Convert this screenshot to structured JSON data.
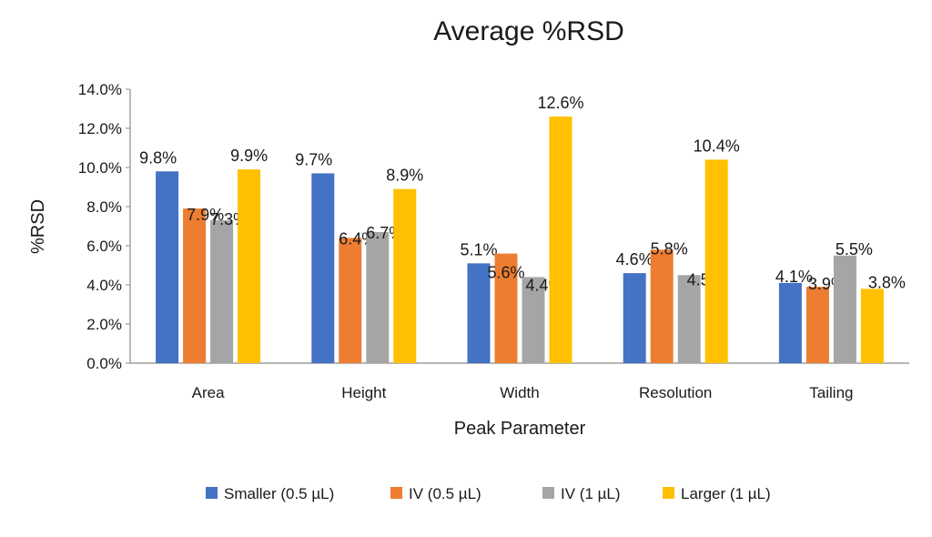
{
  "chart_data": {
    "type": "bar",
    "title": "Average %RSD",
    "xlabel": "Peak Parameter",
    "ylabel": "%RSD",
    "ylim": [
      0,
      14
    ],
    "y_tick_step": 2,
    "y_tick_labels": [
      "0.0%",
      "2.0%",
      "4.0%",
      "6.0%",
      "8.0%",
      "10.0%",
      "12.0%",
      "14.0%"
    ],
    "grid": false,
    "legend_position": "bottom",
    "categories": [
      "Area",
      "Height",
      "Width",
      "Resolution",
      "Tailing"
    ],
    "series": [
      {
        "name": "Smaller (0.5 µL)",
        "color": "#4472C4",
        "values": [
          9.8,
          9.7,
          5.1,
          4.6,
          4.1
        ],
        "labels": [
          "9.8%",
          "9.7%",
          "5.1%",
          "4.6%",
          "4.1%"
        ]
      },
      {
        "name": "IV (0.5 µL)",
        "color": "#ED7D31",
        "values": [
          7.9,
          6.4,
          5.6,
          5.8,
          3.9
        ],
        "labels": [
          "7.9%",
          "6.4%",
          "5.6%",
          "5.8%",
          "3.9%"
        ]
      },
      {
        "name": "IV (1 µL)",
        "color": "#A5A5A5",
        "values": [
          7.3,
          6.7,
          4.4,
          4.5,
          5.5
        ],
        "labels": [
          "7.3%",
          "6.7%",
          "4.4%",
          "4.5%",
          "5.5%"
        ]
      },
      {
        "name": "Larger (1 µL)",
        "color": "#FFC000",
        "values": [
          9.9,
          8.9,
          12.6,
          10.4,
          3.8
        ],
        "labels": [
          "9.9%",
          "8.9%",
          "12.6%",
          "10.4%",
          "3.8%"
        ]
      }
    ]
  }
}
